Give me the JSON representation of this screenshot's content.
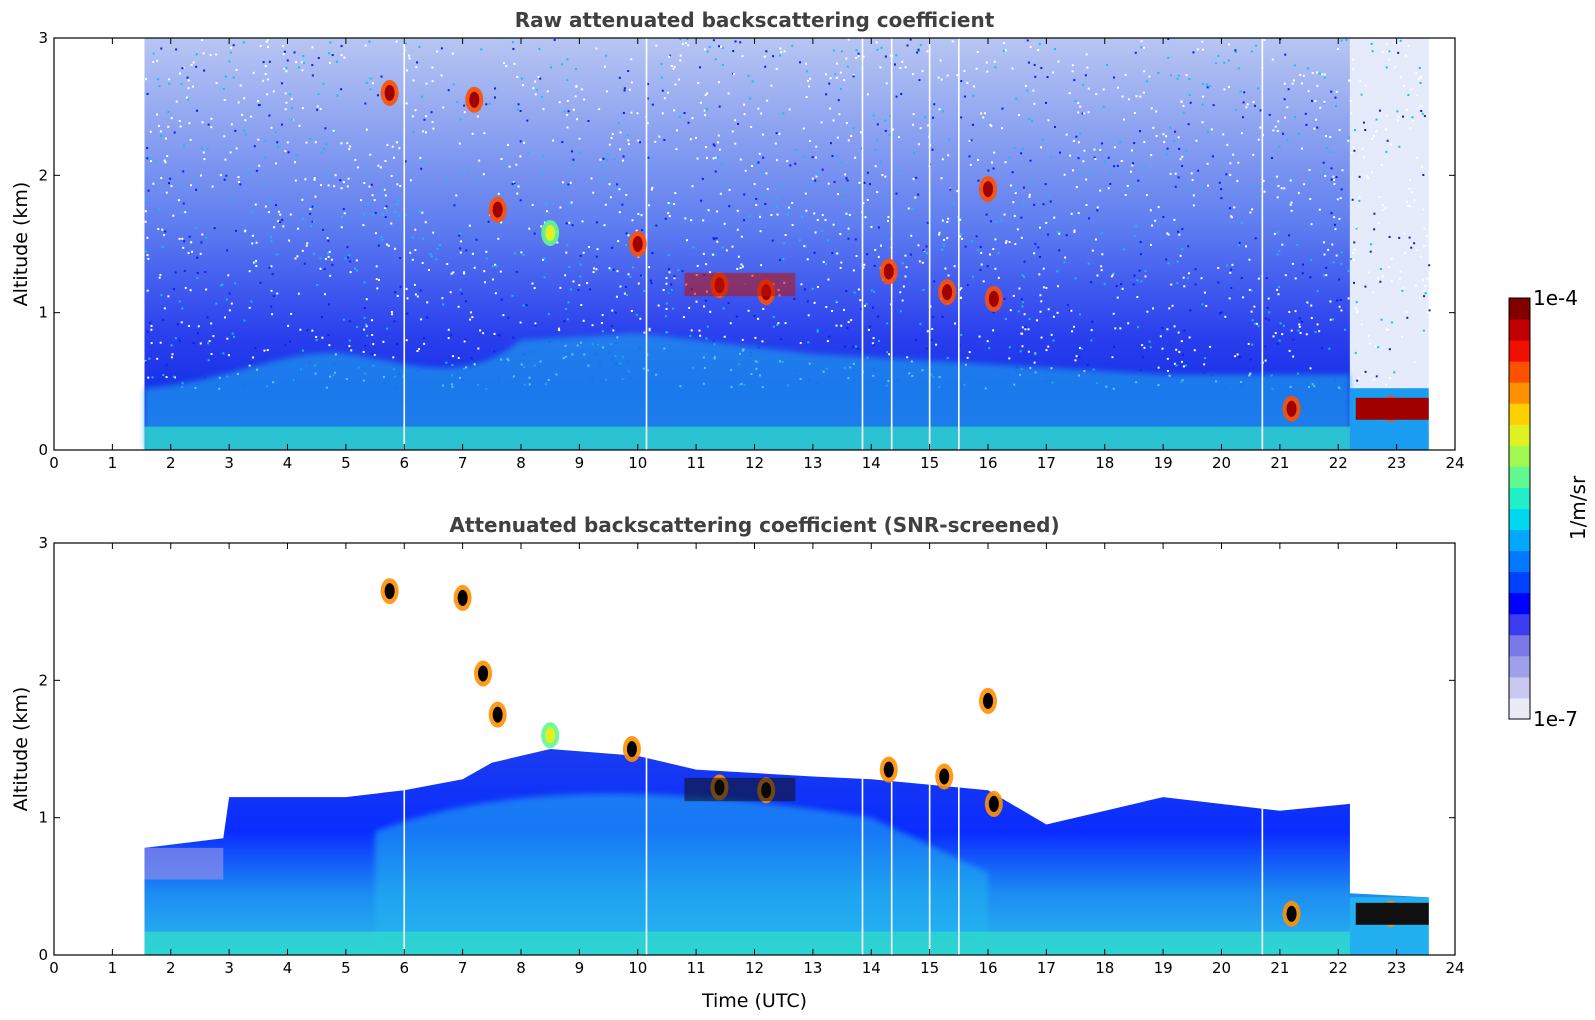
{
  "chart_data": [
    {
      "type": "heatmap",
      "id": "raw",
      "title": "Raw attenuated backscattering coefficient",
      "xlabel": "",
      "ylabel": "Altitude (km)",
      "xlim": [
        0,
        24
      ],
      "ylim": [
        0,
        3
      ],
      "xticks": [
        "0",
        "1",
        "2",
        "3",
        "4",
        "5",
        "6",
        "7",
        "8",
        "9",
        "10",
        "11",
        "12",
        "13",
        "14",
        "15",
        "16",
        "17",
        "18",
        "19",
        "20",
        "21",
        "22",
        "23",
        "24"
      ],
      "yticks": [
        "0",
        "1",
        "2",
        "3"
      ],
      "data_start_time": 1.55,
      "data_end_time": 23.55,
      "data_gap_lines": [
        6.0,
        10.15,
        13.85,
        14.35,
        15.0,
        15.5,
        20.7
      ],
      "surface_layer_top_km": 0.45,
      "clouds": [
        {
          "t": 5.75,
          "alt": 2.6,
          "level": "high"
        },
        {
          "t": 7.2,
          "alt": 2.55,
          "level": "high"
        },
        {
          "t": 7.6,
          "alt": 1.75,
          "level": "high"
        },
        {
          "t": 8.5,
          "alt": 1.58,
          "level": "medium"
        },
        {
          "t": 10.0,
          "alt": 1.5,
          "level": "high"
        },
        {
          "t": 11.4,
          "alt": 1.2,
          "level": "high"
        },
        {
          "t": 12.2,
          "alt": 1.15,
          "level": "high"
        },
        {
          "t": 14.3,
          "alt": 1.3,
          "level": "high"
        },
        {
          "t": 15.3,
          "alt": 1.15,
          "level": "high"
        },
        {
          "t": 16.0,
          "alt": 1.9,
          "level": "high"
        },
        {
          "t": 16.1,
          "alt": 1.1,
          "level": "high"
        },
        {
          "t": 21.2,
          "alt": 0.3,
          "level": "high"
        },
        {
          "t": 22.9,
          "alt": 0.3,
          "level": "high"
        }
      ]
    },
    {
      "type": "heatmap",
      "id": "screened",
      "title": "Attenuated backscattering coefficient (SNR-screened)",
      "xlabel": "Time (UTC)",
      "ylabel": "Altitude (km)",
      "xlim": [
        0,
        24
      ],
      "ylim": [
        0,
        3
      ],
      "xticks": [
        "0",
        "1",
        "2",
        "3",
        "4",
        "5",
        "6",
        "7",
        "8",
        "9",
        "10",
        "11",
        "12",
        "13",
        "14",
        "15",
        "16",
        "17",
        "18",
        "19",
        "20",
        "21",
        "22",
        "23",
        "24"
      ],
      "yticks": [
        "0",
        "1",
        "2",
        "3"
      ],
      "data_start_time": 1.55,
      "data_end_time": 23.55,
      "data_gap_lines": [
        6.0,
        10.15,
        13.85,
        14.35,
        15.0,
        15.5,
        20.7
      ],
      "boundary_layer_top_km": [
        [
          1.55,
          0.78
        ],
        [
          2.9,
          0.85
        ],
        [
          3.0,
          1.15
        ],
        [
          5.0,
          1.15
        ],
        [
          6.0,
          1.2
        ],
        [
          7.0,
          1.28
        ],
        [
          7.5,
          1.4
        ],
        [
          8.5,
          1.5
        ],
        [
          10.0,
          1.45
        ],
        [
          11.0,
          1.35
        ],
        [
          13.0,
          1.3
        ],
        [
          14.0,
          1.28
        ],
        [
          16.0,
          1.2
        ],
        [
          17.0,
          0.95
        ],
        [
          19.0,
          1.15
        ],
        [
          21.0,
          1.05
        ],
        [
          22.2,
          1.1
        ],
        [
          22.2,
          0.45
        ],
        [
          23.55,
          0.42
        ]
      ],
      "clouds": [
        {
          "t": 5.75,
          "alt": 2.65,
          "level": "peak"
        },
        {
          "t": 7.0,
          "alt": 2.6,
          "level": "peak"
        },
        {
          "t": 7.35,
          "alt": 2.05,
          "level": "peak"
        },
        {
          "t": 7.6,
          "alt": 1.75,
          "level": "peak"
        },
        {
          "t": 8.5,
          "alt": 1.6,
          "level": "medium"
        },
        {
          "t": 9.9,
          "alt": 1.5,
          "level": "peak"
        },
        {
          "t": 11.4,
          "alt": 1.22,
          "level": "peak"
        },
        {
          "t": 12.2,
          "alt": 1.2,
          "level": "peak"
        },
        {
          "t": 14.3,
          "alt": 1.35,
          "level": "peak"
        },
        {
          "t": 15.25,
          "alt": 1.3,
          "level": "peak"
        },
        {
          "t": 16.0,
          "alt": 1.85,
          "level": "peak"
        },
        {
          "t": 16.1,
          "alt": 1.1,
          "level": "peak"
        },
        {
          "t": 21.2,
          "alt": 0.3,
          "level": "peak"
        },
        {
          "t": 22.9,
          "alt": 0.3,
          "level": "peak"
        }
      ]
    }
  ],
  "colorbar": {
    "max_label": "1e-4",
    "min_label": "1e-7",
    "unit_label": "1/m/sr",
    "colors": [
      "#ebebf8",
      "#c8c8f0",
      "#a0a0ea",
      "#7878e6",
      "#3c3cf0",
      "#0000ff",
      "#0040ff",
      "#0078ff",
      "#00a8ff",
      "#00d8f0",
      "#20f0c8",
      "#60f890",
      "#a0f850",
      "#e0f020",
      "#ffd000",
      "#ff9000",
      "#ff5000",
      "#f01000",
      "#c00000",
      "#800000"
    ]
  }
}
